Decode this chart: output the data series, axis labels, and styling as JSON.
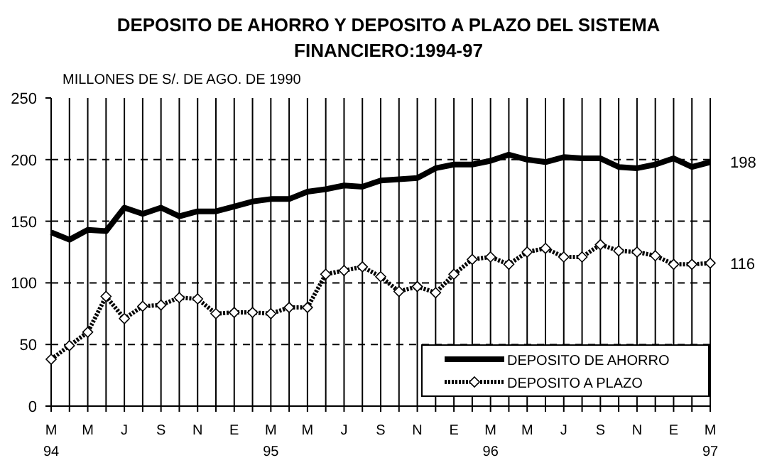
{
  "chart_data": {
    "type": "line",
    "title": "DEPOSITO DE AHORRO Y DEPOSITO A PLAZO DEL SISTEMA FINANCIERO:1994-97",
    "ylabel": "MILLONES DE S/. DE AGO. DE 1990",
    "categories": [
      "M\n94",
      null,
      "M",
      null,
      "J",
      null,
      "S",
      null,
      "N",
      null,
      "E",
      null,
      "M\n95",
      null,
      "M",
      null,
      "J",
      null,
      "S",
      null,
      "N",
      null,
      "E",
      null,
      "M\n96",
      null,
      "M",
      null,
      "J",
      null,
      "S",
      null,
      "N",
      null,
      "E",
      null,
      "M\n97"
    ],
    "series": [
      {
        "name": "DEPOSITO DE AHORRO",
        "color": "#000000",
        "marker": "none",
        "line_style": "solid",
        "values": [
          141,
          135,
          143,
          142,
          161,
          156,
          161,
          154,
          158,
          158,
          162,
          166,
          168,
          168,
          174,
          176,
          179,
          178,
          183,
          184,
          185,
          193,
          196,
          196,
          199,
          204,
          200,
          198,
          202,
          201,
          201,
          194,
          193,
          196,
          201,
          194,
          198
        ],
        "value_labels": [
          null,
          null,
          null,
          null,
          null,
          null,
          null,
          null,
          null,
          null,
          null,
          null,
          null,
          null,
          null,
          null,
          null,
          null,
          null,
          null,
          null,
          null,
          null,
          null,
          null,
          null,
          null,
          null,
          null,
          null,
          null,
          null,
          null,
          null,
          null,
          null,
          "198"
        ]
      },
      {
        "name": "DEPOSITO A PLAZO",
        "color": "#000000",
        "marker": "diamond",
        "line_style": "dotted",
        "values": [
          38,
          49,
          60,
          89,
          71,
          81,
          82,
          88,
          87,
          75,
          76,
          76,
          75,
          80,
          80,
          107,
          110,
          113,
          105,
          93,
          97,
          92,
          107,
          119,
          121,
          115,
          125,
          128,
          121,
          121,
          131,
          126,
          125,
          122,
          115,
          115,
          116
        ],
        "value_labels": [
          null,
          null,
          null,
          null,
          null,
          null,
          null,
          null,
          null,
          null,
          null,
          null,
          null,
          null,
          null,
          null,
          null,
          null,
          null,
          null,
          null,
          null,
          null,
          null,
          null,
          null,
          null,
          null,
          null,
          null,
          null,
          null,
          null,
          null,
          null,
          null,
          "116"
        ]
      }
    ],
    "ylim": [
      0,
      250
    ],
    "yticks": [
      0,
      50,
      100,
      150,
      200,
      250
    ],
    "grid": true,
    "legend": "bottom right"
  }
}
